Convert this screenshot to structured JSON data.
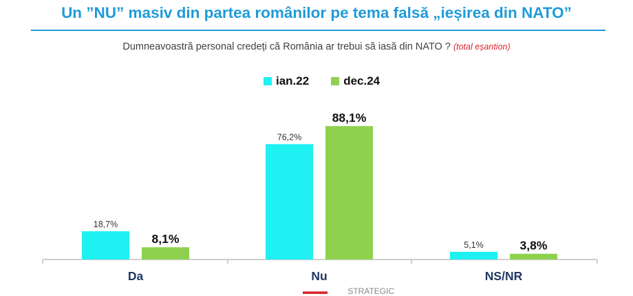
{
  "title": "Un ”NU” masiv din partea românilor pe tema falsă „ieșirea din NATO”",
  "question": "Dumneavoastră personal credeți că România ar trebui să iasă din NATO ?",
  "question_note": "(total eșantion)",
  "footer_logo_text": "STRATEGIC",
  "colors": {
    "title": "#1f9bd7",
    "series1": "#1ff0f2",
    "series2": "#8fd14f",
    "axis": "#bfbfbf",
    "note": "#d9262c"
  },
  "chart_data": {
    "type": "bar",
    "categories": [
      "Da",
      "Nu",
      "NS/NR"
    ],
    "series": [
      {
        "name": "ian.22",
        "values": [
          18.7,
          76.2,
          5.1
        ],
        "labels": [
          "18,7%",
          "76,2%",
          "5,1%"
        ],
        "color": "#1ff0f2"
      },
      {
        "name": "dec.24",
        "values": [
          8.1,
          88.1,
          3.8
        ],
        "labels": [
          "8,1%",
          "88,1%",
          "3,8%"
        ],
        "color": "#8fd14f"
      }
    ],
    "legend_position": "top-center",
    "grid": false,
    "ylim": [
      0,
      100
    ]
  }
}
